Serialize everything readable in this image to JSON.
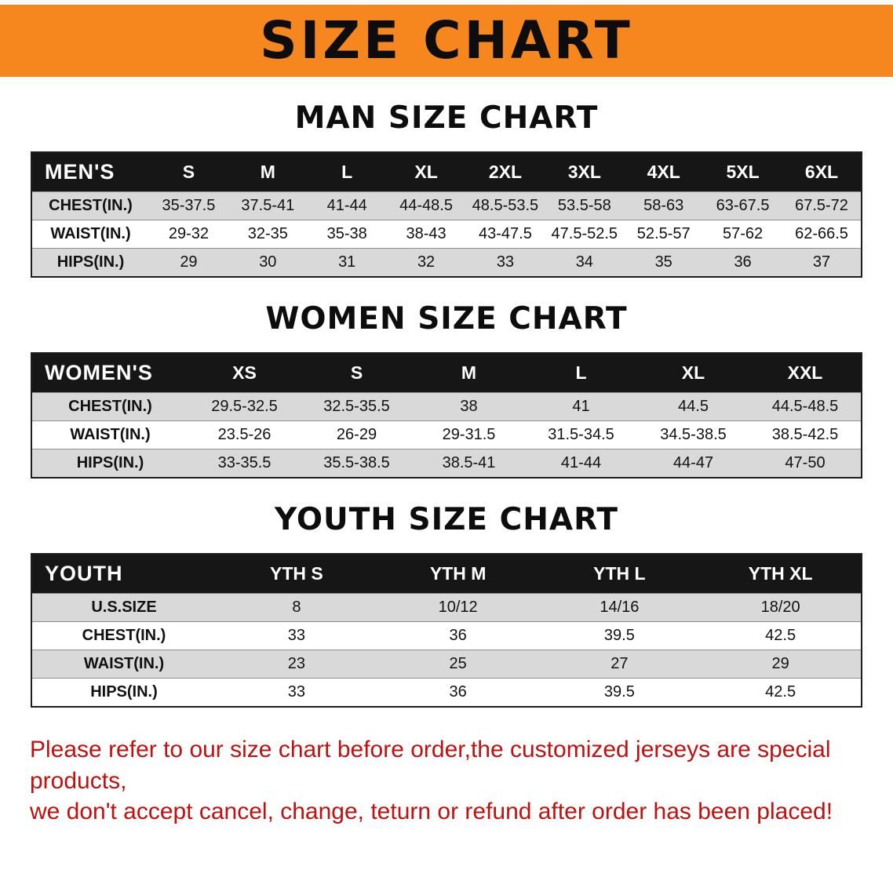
{
  "banner": {
    "title": "SIZE CHART",
    "bg_color": "#F6871F",
    "text_color": "#0D0D0D"
  },
  "sections": [
    {
      "title": "MAN SIZE CHART",
      "table": {
        "header": [
          "MEN'S",
          "S",
          "M",
          "L",
          "XL",
          "2XL",
          "3XL",
          "4XL",
          "5XL",
          "6XL"
        ],
        "rows": [
          [
            "CHEST(IN.)",
            "35-37.5",
            "37.5-41",
            "41-44",
            "44-48.5",
            "48.5-53.5",
            "53.5-58",
            "58-63",
            "63-67.5",
            "67.5-72"
          ],
          [
            "WAIST(IN.)",
            "29-32",
            "32-35",
            "35-38",
            "38-43",
            "43-47.5",
            "47.5-52.5",
            "52.5-57",
            "57-62",
            "62-66.5"
          ],
          [
            "HIPS(IN.)",
            "29",
            "30",
            "31",
            "32",
            "33",
            "34",
            "35",
            "36",
            "37"
          ]
        ]
      }
    },
    {
      "title": "WOMEN SIZE CHART",
      "table": {
        "header": [
          "WOMEN'S",
          "XS",
          "S",
          "M",
          "L",
          "XL",
          "XXL"
        ],
        "rows": [
          [
            "CHEST(IN.)",
            "29.5-32.5",
            "32.5-35.5",
            "38",
            "41",
            "44.5",
            "44.5-48.5"
          ],
          [
            "WAIST(IN.)",
            "23.5-26",
            "26-29",
            "29-31.5",
            "31.5-34.5",
            "34.5-38.5",
            "38.5-42.5"
          ],
          [
            "HIPS(IN.)",
            "33-35.5",
            "35.5-38.5",
            "38.5-41",
            "41-44",
            "44-47",
            "47-50"
          ]
        ]
      }
    },
    {
      "title": "YOUTH SIZE CHART",
      "table": {
        "header": [
          "YOUTH",
          "YTH S",
          "YTH M",
          "YTH L",
          "YTH XL"
        ],
        "rows": [
          [
            "U.S.SIZE",
            "8",
            "10/12",
            "14/16",
            "18/20"
          ],
          [
            "CHEST(IN.)",
            "33",
            "36",
            "39.5",
            "42.5"
          ],
          [
            "WAIST(IN.)",
            "23",
            "25",
            "27",
            "29"
          ],
          [
            "HIPS(IN.)",
            "33",
            "36",
            "39.5",
            "42.5"
          ]
        ]
      }
    }
  ],
  "footer": {
    "line1": "Please refer to our size chart before order,the customized jerseys are special products,",
    "line2": "we don't accept cancel, change, teturn or refund after order has been placed!",
    "text_color": "#C01010"
  },
  "colors": {
    "table_header_bg": "#161616",
    "table_header_text": "#FFFFFF",
    "row_stripe": "#D9D9D9",
    "row_plain": "#FFFFFF"
  }
}
